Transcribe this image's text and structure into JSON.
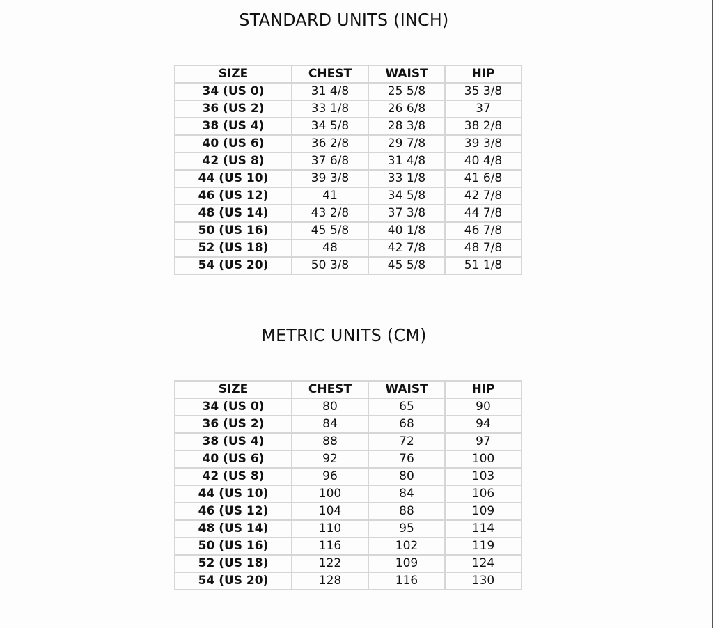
{
  "tables": [
    {
      "title": "STANDARD UNITS (INCH)",
      "headers": [
        "SIZE",
        "CHEST",
        "WAIST",
        "HIP"
      ],
      "rows": [
        [
          "34 (US 0)",
          "31 4/8",
          "25 5/8",
          "35 3/8"
        ],
        [
          "36 (US 2)",
          "33 1/8",
          "26 6/8",
          "37"
        ],
        [
          "38 (US 4)",
          "34 5/8",
          "28 3/8",
          "38 2/8"
        ],
        [
          "40 (US 6)",
          "36 2/8",
          "29 7/8",
          "39 3/8"
        ],
        [
          "42 (US 8)",
          "37 6/8",
          "31 4/8",
          "40 4/8"
        ],
        [
          "44 (US 10)",
          "39 3/8",
          "33 1/8",
          "41 6/8"
        ],
        [
          "46 (US 12)",
          "41",
          "34 5/8",
          "42 7/8"
        ],
        [
          "48 (US 14)",
          "43 2/8",
          "37 3/8",
          "44 7/8"
        ],
        [
          "50 (US 16)",
          "45 5/8",
          "40 1/8",
          "46 7/8"
        ],
        [
          "52 (US 18)",
          "48",
          "42 7/8",
          "48 7/8"
        ],
        [
          "54 (US 20)",
          "50 3/8",
          "45 5/8",
          "51 1/8"
        ]
      ]
    },
    {
      "title": "METRIC UNITS (CM)",
      "headers": [
        "SIZE",
        "CHEST",
        "WAIST",
        "HIP"
      ],
      "rows": [
        [
          "34 (US 0)",
          "80",
          "65",
          "90"
        ],
        [
          "36 (US 2)",
          "84",
          "68",
          "94"
        ],
        [
          "38 (US 4)",
          "88",
          "72",
          "97"
        ],
        [
          "40 (US 6)",
          "92",
          "76",
          "100"
        ],
        [
          "42 (US 8)",
          "96",
          "80",
          "103"
        ],
        [
          "44 (US 10)",
          "100",
          "84",
          "106"
        ],
        [
          "46 (US 12)",
          "104",
          "88",
          "109"
        ],
        [
          "48 (US 14)",
          "110",
          "95",
          "114"
        ],
        [
          "50 (US 16)",
          "116",
          "102",
          "119"
        ],
        [
          "52 (US 18)",
          "122",
          "109",
          "124"
        ],
        [
          "54 (US 20)",
          "128",
          "116",
          "130"
        ]
      ]
    }
  ]
}
